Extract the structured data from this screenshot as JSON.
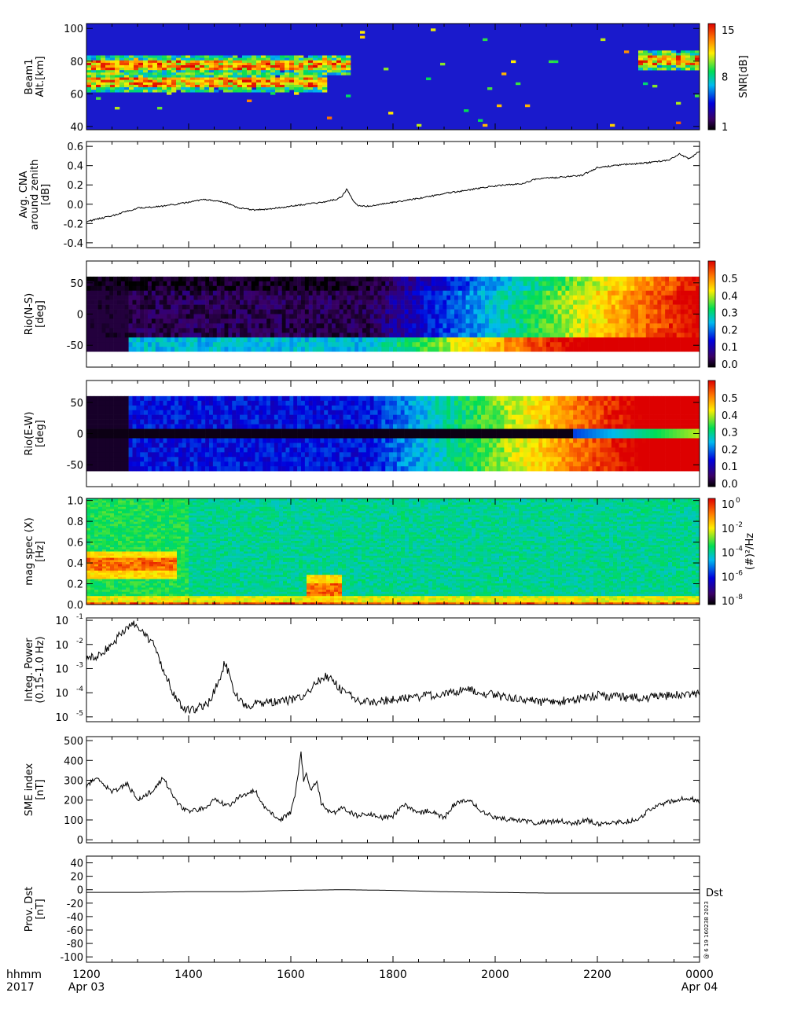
{
  "time_axis": {
    "tick_labels": [
      "1200",
      "1400",
      "1600",
      "1800",
      "2000",
      "2200",
      "0000"
    ],
    "tick_hours": [
      12,
      14,
      16,
      18,
      20,
      22,
      24
    ],
    "date_labels": [
      {
        "at": 12,
        "text": "Apr 03"
      },
      {
        "at": 24,
        "text": "Apr 04"
      }
    ],
    "format_label": "hhmm",
    "year_label": "2017"
  },
  "side_note": "@ 6 19 160238 2023",
  "chart_data": [
    {
      "type": "heatmap",
      "ylabel_lines": [
        "Beam1",
        "Alt.[km]"
      ],
      "yticks": [
        40,
        60,
        80,
        100
      ],
      "ylim": [
        38,
        103
      ],
      "xlim_hours": [
        12,
        24
      ],
      "colorbar": {
        "label": "SNR[dB]",
        "ticks": [
          "15",
          "8",
          "1"
        ],
        "range": [
          1,
          15
        ]
      },
      "features": [
        {
          "desc": "enhanced band",
          "alt": 77,
          "t": [
            12.0,
            17.2
          ]
        },
        {
          "desc": "enhanced band",
          "alt": 67,
          "t": [
            12.0,
            16.7
          ]
        },
        {
          "desc": "enhanced band",
          "alt": 80,
          "t": [
            22.8,
            24.0
          ]
        }
      ]
    },
    {
      "type": "line",
      "ylabel_lines": [
        "Avg. CNA",
        "around zenith",
        "[dB]"
      ],
      "yticks": [
        "-0.4",
        "-0.2",
        "0.0",
        "0.2",
        "0.4",
        "0.6"
      ],
      "ylim": [
        -0.45,
        0.65
      ],
      "x": [
        12.0,
        12.5,
        13.0,
        13.5,
        14.0,
        14.3,
        14.7,
        15.0,
        15.3,
        15.6,
        16.0,
        16.3,
        16.6,
        16.9,
        17.0,
        17.1,
        17.2,
        17.3,
        17.5,
        18.0,
        18.5,
        19.0,
        19.5,
        20.0,
        20.5,
        20.8,
        21.0,
        21.3,
        21.7,
        22.0,
        22.5,
        23.0,
        23.4,
        23.6,
        23.8,
        24.0
      ],
      "y": [
        -0.18,
        -0.12,
        -0.04,
        -0.02,
        0.02,
        0.05,
        0.02,
        -0.04,
        -0.06,
        -0.05,
        -0.02,
        0.0,
        0.02,
        0.05,
        0.08,
        0.16,
        0.05,
        -0.01,
        -0.02,
        0.02,
        0.06,
        0.11,
        0.15,
        0.19,
        0.21,
        0.26,
        0.27,
        0.28,
        0.3,
        0.38,
        0.41,
        0.43,
        0.46,
        0.52,
        0.47,
        0.55
      ]
    },
    {
      "type": "heatmap",
      "ylabel_lines": [
        "Rio(N-S)",
        "[deg]"
      ],
      "yticks": [
        -50,
        0,
        50
      ],
      "ylim": [
        -85,
        85
      ],
      "data_extent": [
        -60,
        60
      ],
      "colorbar": {
        "ticks": [
          "0.5",
          "0.4",
          "0.3",
          "0.2",
          "0.1",
          "0.0"
        ],
        "range": [
          0,
          0.6
        ]
      }
    },
    {
      "type": "heatmap",
      "ylabel_lines": [
        "Rio(E-W)",
        "[deg]"
      ],
      "yticks": [
        -50,
        0,
        50
      ],
      "ylim": [
        -85,
        85
      ],
      "data_extent": [
        -60,
        60
      ],
      "colorbar": {
        "ticks": [
          "0.5",
          "0.4",
          "0.3",
          "0.2",
          "0.1",
          "0.0"
        ],
        "range": [
          0,
          0.6
        ]
      }
    },
    {
      "type": "heatmap",
      "ylabel_lines": [
        "mag spec (X)",
        "[Hz]"
      ],
      "yticks": [
        "0.0",
        "0.2",
        "0.4",
        "0.6",
        "0.8",
        "1.0"
      ],
      "ylim": [
        0,
        1.02
      ],
      "colorbar": {
        "label": "(#)²/Hz",
        "ticks": [
          "0",
          "-2",
          "-4",
          "-6",
          "-8"
        ],
        "tick_base": "10",
        "range_log10": [
          -9,
          0
        ]
      },
      "features": [
        {
          "desc": "Pc1 band",
          "freq": 0.38,
          "t": [
            12.0,
            13.8
          ]
        },
        {
          "desc": "Pc1 band",
          "freq": 0.15,
          "t": [
            16.3,
            17.0
          ]
        }
      ]
    },
    {
      "type": "line",
      "ylabel_lines": [
        "Integ. Power",
        "(0.15-1.0 Hz)"
      ],
      "log_scale": true,
      "yticks": [
        "-5",
        "-4",
        "-3",
        "-2",
        "-1"
      ],
      "ytick_base": "10",
      "ylim_log10": [
        -5.2,
        -0.9
      ],
      "x": [
        12.0,
        12.2,
        12.5,
        12.7,
        12.9,
        13.1,
        13.3,
        13.5,
        13.7,
        13.9,
        14.1,
        14.4,
        14.6,
        14.7,
        14.8,
        14.9,
        15.1,
        15.4,
        15.7,
        16.0,
        16.3,
        16.5,
        16.7,
        16.9,
        17.2,
        17.5,
        18.0,
        18.5,
        19.0,
        19.5,
        20.0,
        20.5,
        21.0,
        21.5,
        22.0,
        22.5,
        23.0,
        23.5,
        24.0
      ],
      "y": [
        -2.5,
        -2.5,
        -2.0,
        -1.5,
        -1.1,
        -1.4,
        -2.0,
        -3.0,
        -4.0,
        -4.7,
        -4.7,
        -4.4,
        -3.5,
        -2.8,
        -3.2,
        -4.0,
        -4.6,
        -4.4,
        -4.4,
        -4.3,
        -4.1,
        -3.5,
        -3.3,
        -3.7,
        -4.2,
        -4.4,
        -4.3,
        -4.2,
        -4.0,
        -3.9,
        -4.1,
        -4.3,
        -4.4,
        -4.3,
        -4.1,
        -4.2,
        -4.2,
        -4.1,
        -4.0
      ]
    },
    {
      "type": "line",
      "ylabel_lines": [
        "SME index",
        "[nT]"
      ],
      "yticks": [
        "0",
        "100",
        "200",
        "300",
        "400",
        "500"
      ],
      "ylim": [
        -15,
        520
      ],
      "x": [
        12.0,
        12.2,
        12.5,
        12.8,
        13.0,
        13.3,
        13.5,
        13.8,
        14.0,
        14.3,
        14.5,
        14.8,
        15.0,
        15.3,
        15.5,
        15.8,
        16.0,
        16.1,
        16.2,
        16.25,
        16.3,
        16.4,
        16.5,
        16.6,
        16.8,
        17.0,
        17.3,
        17.5,
        17.8,
        18.0,
        18.2,
        18.5,
        18.7,
        19.0,
        19.2,
        19.5,
        19.7,
        20.0,
        20.3,
        20.5,
        20.8,
        21.0,
        21.3,
        21.5,
        21.8,
        22.0,
        22.3,
        22.5,
        22.8,
        23.0,
        23.3,
        23.5,
        23.8,
        24.0
      ],
      "y": [
        270,
        320,
        240,
        280,
        200,
        250,
        310,
        180,
        140,
        160,
        200,
        170,
        220,
        250,
        160,
        100,
        140,
        250,
        440,
        300,
        330,
        250,
        300,
        180,
        130,
        160,
        120,
        130,
        110,
        120,
        180,
        130,
        150,
        110,
        180,
        200,
        150,
        110,
        100,
        100,
        85,
        90,
        95,
        80,
        100,
        80,
        85,
        90,
        100,
        150,
        180,
        200,
        210,
        190
      ]
    },
    {
      "type": "line",
      "ylabel_lines": [
        "Prov. Dst",
        "[nT]"
      ],
      "yticks": [
        "-100",
        "-80",
        "-60",
        "-40",
        "-20",
        "0",
        "20",
        "40"
      ],
      "ylim": [
        -108,
        50
      ],
      "series": [
        {
          "name": "Dst",
          "x": [
            12.0,
            13.0,
            14.0,
            15.0,
            16.0,
            17.0,
            18.0,
            19.0,
            20.0,
            21.0,
            22.0,
            23.0,
            24.0
          ],
          "y": [
            -4,
            -4,
            -3,
            -3,
            -1,
            0,
            -1,
            -3,
            -4,
            -5,
            -5,
            -5,
            -5
          ]
        }
      ]
    }
  ]
}
